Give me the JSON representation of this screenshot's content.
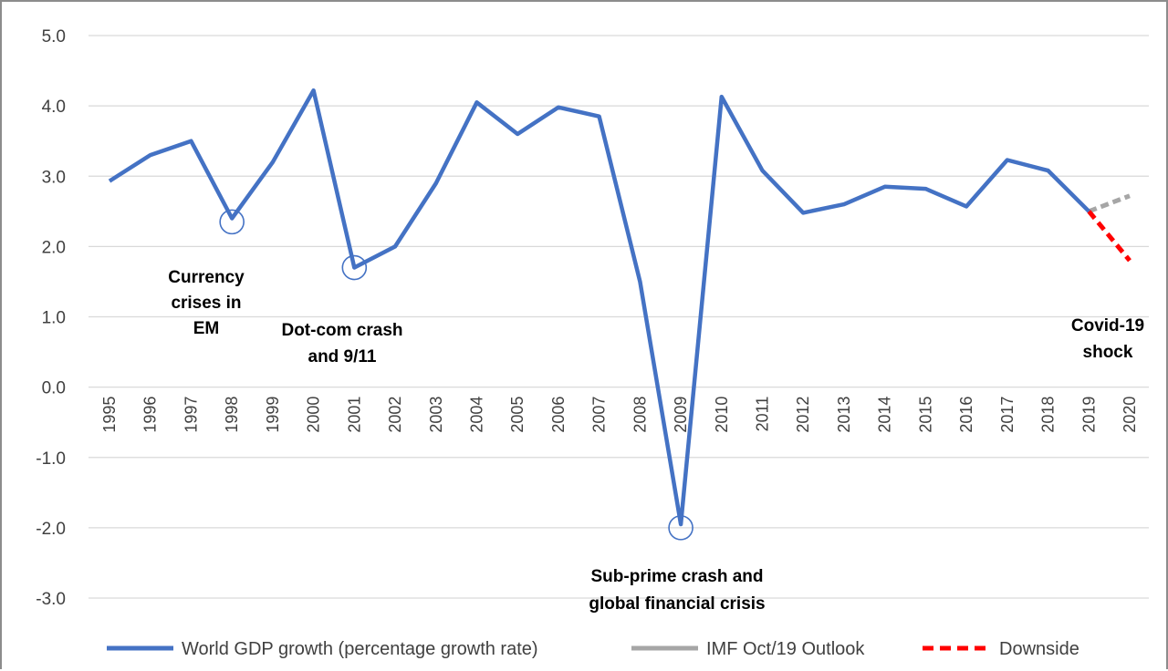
{
  "chart_data": {
    "type": "line",
    "title": "",
    "xlabel": "",
    "ylabel": "",
    "ylim": [
      -3.0,
      5.0
    ],
    "yticks": [
      "5.0",
      "4.0",
      "3.0",
      "2.0",
      "1.0",
      "0.0",
      "-1.0",
      "-2.0",
      "-3.0"
    ],
    "ytick_values": [
      5,
      4,
      3,
      2,
      1,
      0,
      -1,
      -2,
      -3
    ],
    "categories": [
      "1995",
      "1996",
      "1997",
      "1998",
      "1999",
      "2000",
      "2001",
      "2002",
      "2003",
      "2004",
      "2005",
      "2006",
      "2007",
      "2008",
      "2009",
      "2010",
      "2011",
      "2012",
      "2013",
      "2014",
      "2015",
      "2016",
      "2017",
      "2018",
      "2019",
      "2020"
    ],
    "grid": true,
    "legend_position": "bottom",
    "series": [
      {
        "name": "World GDP growth (percentage growth rate)",
        "color": "#4472c4",
        "style": "solid",
        "x": [
          "1995",
          "1996",
          "1997",
          "1998",
          "1999",
          "2000",
          "2001",
          "2002",
          "2003",
          "2004",
          "2005",
          "2006",
          "2007",
          "2008",
          "2009",
          "2010",
          "2011",
          "2012",
          "2013",
          "2014",
          "2015",
          "2016",
          "2017",
          "2018",
          "2019"
        ],
        "values": [
          2.93,
          3.3,
          3.5,
          2.4,
          3.2,
          4.22,
          1.7,
          2.0,
          2.9,
          4.05,
          3.6,
          3.98,
          3.85,
          1.5,
          -1.95,
          4.13,
          3.08,
          2.48,
          2.6,
          2.85,
          2.82,
          2.57,
          3.23,
          3.08,
          2.5
        ]
      },
      {
        "name": "IMF Oct/19 Outlook",
        "color": "#a6a6a6",
        "style": "dashed",
        "x": [
          "2019",
          "2020"
        ],
        "values": [
          2.5,
          2.72
        ]
      },
      {
        "name": "Downside",
        "color": "#ff0000",
        "style": "dashed",
        "x": [
          "2019",
          "2020"
        ],
        "values": [
          2.5,
          1.8
        ]
      }
    ],
    "highlight_circles": [
      {
        "x": "1998",
        "y": 2.35
      },
      {
        "x": "2001",
        "y": 1.7
      },
      {
        "x": "2009",
        "y": -2.0
      }
    ],
    "annotations": [
      {
        "id": "currency",
        "lines": [
          "Currency",
          "crises in",
          "EM"
        ]
      },
      {
        "id": "dotcom",
        "lines": [
          "Dot-com crash",
          "and 9/11"
        ]
      },
      {
        "id": "subprime",
        "lines": [
          "Sub-prime  crash and",
          "global financial crisis"
        ]
      },
      {
        "id": "covid",
        "lines": [
          "Covid-19",
          "shock"
        ]
      }
    ],
    "legend": [
      {
        "label": "World GDP growth (percentage growth rate)",
        "color": "#4472c4",
        "style": "solid"
      },
      {
        "label": "IMF Oct/19 Outlook",
        "color": "#a6a6a6",
        "style": "solid"
      },
      {
        "label": "Downside",
        "color": "#ff0000",
        "style": "dashed"
      }
    ]
  }
}
